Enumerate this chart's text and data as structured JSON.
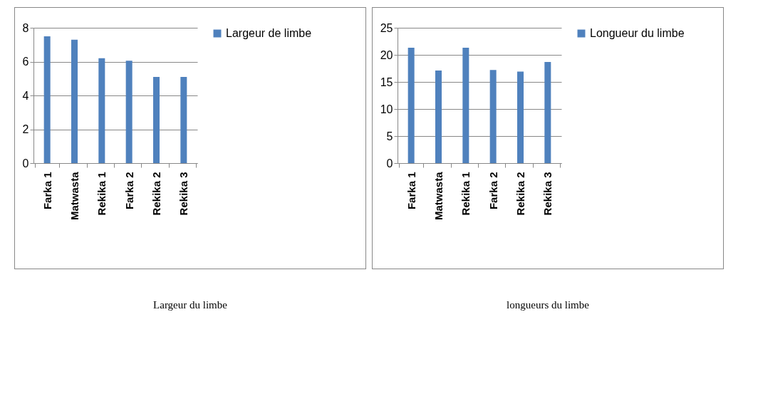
{
  "chart_data": [
    {
      "type": "bar",
      "categories": [
        "Farka 1",
        "Matwasta",
        "Rekika 1",
        "Farka 2",
        "Rekika 2",
        "Rekika 3"
      ],
      "series": [
        {
          "name": "Largeur de limbe",
          "color": "#4f81bd",
          "values": [
            7.5,
            7.3,
            6.2,
            6.05,
            5.1,
            5.1
          ]
        }
      ],
      "ylim": [
        0,
        8
      ],
      "yticks": [
        0,
        2,
        4,
        6,
        8
      ],
      "grid": "y",
      "legend": "right",
      "annotations": [
        "Largeur du limbe"
      ]
    },
    {
      "type": "bar",
      "categories": [
        "Farka  1",
        "Matwasta",
        "Rekika 1",
        "Farka  2",
        "Rekika 2",
        "Rekika 3"
      ],
      "series": [
        {
          "name": "Longueur du limbe",
          "color": "#4f81bd",
          "values": [
            21.3,
            17.1,
            21.3,
            17.2,
            16.9,
            18.7
          ]
        }
      ],
      "ylim": [
        0,
        25
      ],
      "yticks": [
        0,
        5,
        10,
        15,
        20,
        25
      ],
      "grid": "y",
      "legend": "right",
      "annotations": [
        "longueurs du limbe"
      ]
    }
  ]
}
